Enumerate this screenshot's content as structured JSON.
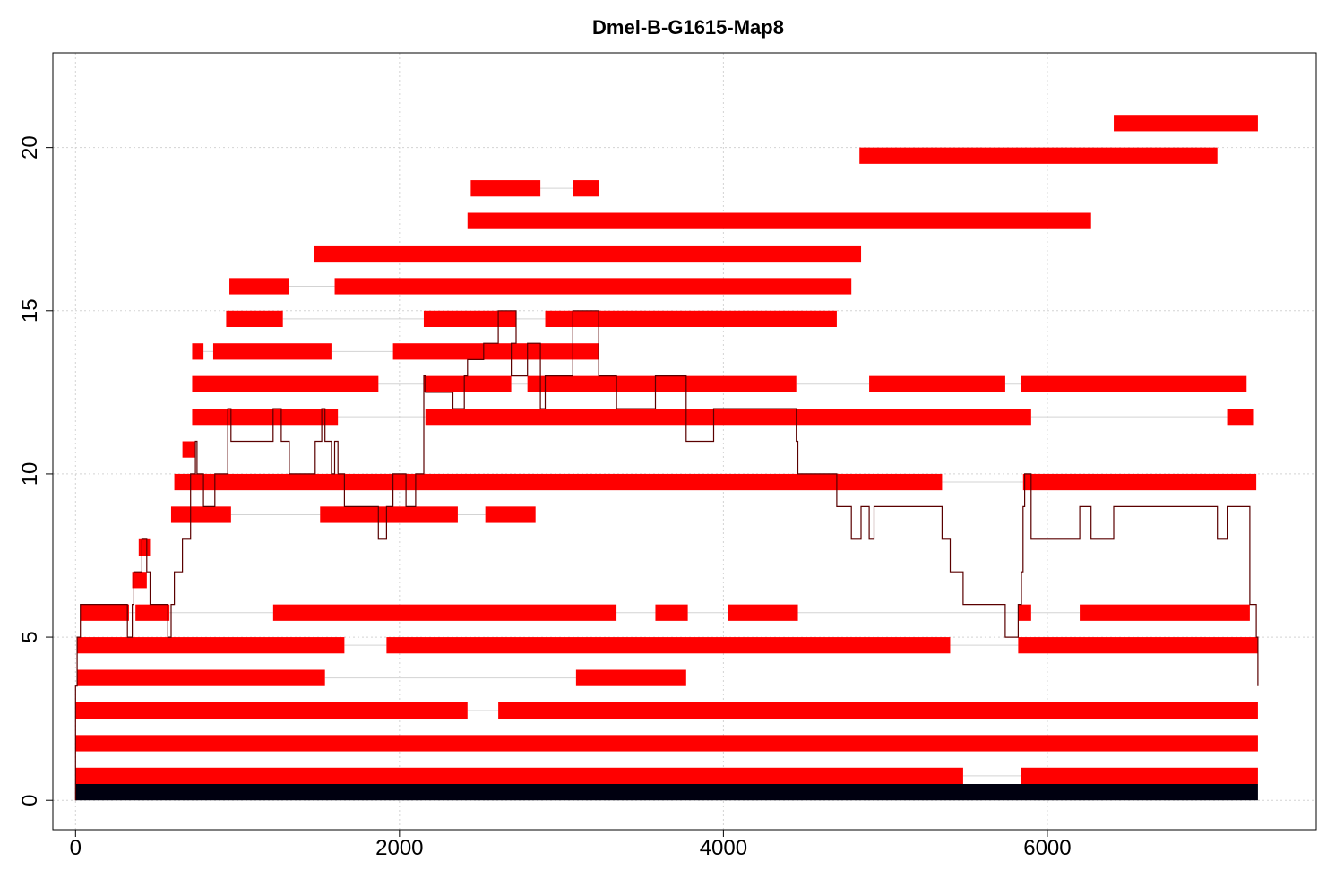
{
  "chart_data": {
    "type": "bar",
    "title": "Dmel-B-G1615-Map8",
    "xlabel": "",
    "ylabel": "",
    "xlim": [
      -140,
      7660
    ],
    "ylim": [
      -0.9,
      22.9
    ],
    "x_ticks": [
      0,
      2000,
      4000,
      6000
    ],
    "y_ticks": [
      0,
      5,
      10,
      15,
      20
    ],
    "grid": true,
    "colors": {
      "segment": "#ff0000",
      "reference": "#000010",
      "gap": "#d3d3d3",
      "coverage": "#5a0000",
      "grid": "#d3d3d3"
    },
    "reference": {
      "name": "",
      "y": 0,
      "start": 0,
      "end": 7300
    },
    "tracks": [
      {
        "y": 1,
        "segments": [
          [
            0,
            5480
          ],
          [
            5840,
            7300
          ]
        ]
      },
      {
        "y": 2,
        "segments": [
          [
            0,
            7300
          ]
        ]
      },
      {
        "y": 3,
        "segments": [
          [
            0,
            2420
          ],
          [
            2610,
            7300
          ]
        ]
      },
      {
        "y": 4,
        "segments": [
          [
            10,
            1540
          ],
          [
            3090,
            3770
          ]
        ]
      },
      {
        "y": 5,
        "segments": [
          [
            10,
            1660
          ],
          [
            1920,
            5400
          ],
          [
            5820,
            7300
          ]
        ]
      },
      {
        "y": 6,
        "segments": [
          [
            30,
            330
          ],
          [
            370,
            580
          ],
          [
            1220,
            3340
          ],
          [
            3580,
            3780
          ],
          [
            4030,
            4460
          ],
          [
            5820,
            5900
          ],
          [
            6200,
            7250
          ]
        ]
      },
      {
        "y": 7,
        "segments": [
          [
            350,
            440
          ]
        ]
      },
      {
        "y": 8,
        "segments": [
          [
            390,
            460
          ]
        ]
      },
      {
        "y": 9,
        "segments": [
          [
            590,
            960
          ],
          [
            1510,
            2360
          ],
          [
            2530,
            2840
          ]
        ]
      },
      {
        "y": 10,
        "segments": [
          [
            610,
            5350
          ],
          [
            5850,
            7290
          ]
        ]
      },
      {
        "y": 11,
        "segments": [
          [
            660,
            740
          ]
        ]
      },
      {
        "y": 12,
        "segments": [
          [
            720,
            1620
          ],
          [
            2160,
            5900
          ],
          [
            7110,
            7270
          ]
        ]
      },
      {
        "y": 13,
        "segments": [
          [
            720,
            1870
          ],
          [
            2150,
            2690
          ],
          [
            2790,
            4450
          ],
          [
            4900,
            5740
          ],
          [
            5840,
            7230
          ]
        ]
      },
      {
        "y": 14,
        "segments": [
          [
            720,
            790
          ],
          [
            850,
            1580
          ],
          [
            1960,
            3230
          ]
        ]
      },
      {
        "y": 15,
        "segments": [
          [
            930,
            1280
          ],
          [
            2150,
            2720
          ],
          [
            2900,
            4700
          ]
        ]
      },
      {
        "y": 16,
        "segments": [
          [
            950,
            1320
          ],
          [
            1600,
            4790
          ]
        ]
      },
      {
        "y": 17,
        "segments": [
          [
            1470,
            4850
          ]
        ]
      },
      {
        "y": 18,
        "segments": [
          [
            2420,
            6270
          ]
        ]
      },
      {
        "y": 19,
        "segments": [
          [
            2440,
            2870
          ],
          [
            3070,
            3230
          ]
        ]
      },
      {
        "y": 20,
        "segments": [
          [
            4840,
            7050
          ]
        ]
      },
      {
        "y": 21,
        "segments": [
          [
            6410,
            7300
          ]
        ]
      }
    ],
    "coverage": [
      [
        0,
        0
      ],
      [
        0,
        3.5
      ],
      [
        10,
        3.5
      ],
      [
        10,
        5
      ],
      [
        30,
        5
      ],
      [
        30,
        6
      ],
      [
        320,
        6
      ],
      [
        320,
        5
      ],
      [
        350,
        5
      ],
      [
        350,
        6
      ],
      [
        360,
        6
      ],
      [
        360,
        7
      ],
      [
        410,
        7
      ],
      [
        410,
        8
      ],
      [
        440,
        8
      ],
      [
        440,
        7
      ],
      [
        460,
        7
      ],
      [
        460,
        6
      ],
      [
        570,
        6
      ],
      [
        570,
        5
      ],
      [
        590,
        5
      ],
      [
        590,
        6
      ],
      [
        610,
        6
      ],
      [
        610,
        7
      ],
      [
        660,
        7
      ],
      [
        660,
        8
      ],
      [
        710,
        8
      ],
      [
        710,
        10
      ],
      [
        740,
        10
      ],
      [
        740,
        11
      ],
      [
        750,
        11
      ],
      [
        750,
        10
      ],
      [
        790,
        10
      ],
      [
        790,
        9
      ],
      [
        860,
        9
      ],
      [
        860,
        10
      ],
      [
        940,
        10
      ],
      [
        940,
        12
      ],
      [
        960,
        12
      ],
      [
        960,
        11
      ],
      [
        1220,
        11
      ],
      [
        1220,
        12
      ],
      [
        1270,
        12
      ],
      [
        1270,
        11
      ],
      [
        1320,
        11
      ],
      [
        1320,
        10
      ],
      [
        1480,
        10
      ],
      [
        1480,
        11
      ],
      [
        1520,
        11
      ],
      [
        1520,
        12
      ],
      [
        1540,
        12
      ],
      [
        1540,
        11
      ],
      [
        1580,
        11
      ],
      [
        1580,
        10
      ],
      [
        1600,
        10
      ],
      [
        1600,
        11
      ],
      [
        1620,
        11
      ],
      [
        1620,
        10
      ],
      [
        1660,
        10
      ],
      [
        1660,
        9
      ],
      [
        1870,
        9
      ],
      [
        1870,
        8
      ],
      [
        1920,
        8
      ],
      [
        1920,
        9
      ],
      [
        1960,
        9
      ],
      [
        1960,
        10
      ],
      [
        2040,
        10
      ],
      [
        2040,
        9
      ],
      [
        2100,
        9
      ],
      [
        2100,
        10
      ],
      [
        2150,
        10
      ],
      [
        2150,
        13
      ],
      [
        2160,
        13
      ],
      [
        2160,
        12.5
      ],
      [
        2330,
        12.5
      ],
      [
        2330,
        12
      ],
      [
        2400,
        12
      ],
      [
        2400,
        13
      ],
      [
        2420,
        13
      ],
      [
        2420,
        13.5
      ],
      [
        2520,
        13.5
      ],
      [
        2520,
        14
      ],
      [
        2610,
        14
      ],
      [
        2610,
        15
      ],
      [
        2720,
        15
      ],
      [
        2720,
        14
      ],
      [
        2690,
        14
      ],
      [
        2690,
        13
      ],
      [
        2790,
        13
      ],
      [
        2790,
        14
      ],
      [
        2870,
        14
      ],
      [
        2870,
        12
      ],
      [
        2900,
        12
      ],
      [
        2900,
        13
      ],
      [
        3070,
        13
      ],
      [
        3070,
        15
      ],
      [
        3230,
        15
      ],
      [
        3230,
        13
      ],
      [
        3340,
        13
      ],
      [
        3340,
        12
      ],
      [
        3580,
        12
      ],
      [
        3580,
        13
      ],
      [
        3770,
        13
      ],
      [
        3770,
        11
      ],
      [
        3940,
        11
      ],
      [
        3940,
        12
      ],
      [
        4450,
        12
      ],
      [
        4450,
        11
      ],
      [
        4460,
        11
      ],
      [
        4460,
        10
      ],
      [
        4700,
        10
      ],
      [
        4700,
        9
      ],
      [
        4790,
        9
      ],
      [
        4790,
        8
      ],
      [
        4850,
        8
      ],
      [
        4850,
        9
      ],
      [
        4900,
        9
      ],
      [
        4900,
        8
      ],
      [
        4930,
        8
      ],
      [
        4930,
        9
      ],
      [
        5350,
        9
      ],
      [
        5350,
        8
      ],
      [
        5400,
        8
      ],
      [
        5400,
        7
      ],
      [
        5480,
        7
      ],
      [
        5480,
        6
      ],
      [
        5740,
        6
      ],
      [
        5740,
        5
      ],
      [
        5820,
        5
      ],
      [
        5820,
        6
      ],
      [
        5840,
        6
      ],
      [
        5840,
        7
      ],
      [
        5850,
        7
      ],
      [
        5850,
        9
      ],
      [
        5860,
        9
      ],
      [
        5860,
        10
      ],
      [
        5900,
        10
      ],
      [
        5900,
        8
      ],
      [
        6200,
        8
      ],
      [
        6200,
        9
      ],
      [
        6270,
        9
      ],
      [
        6270,
        8
      ],
      [
        6410,
        8
      ],
      [
        6410,
        9
      ],
      [
        7050,
        9
      ],
      [
        7050,
        8
      ],
      [
        7110,
        8
      ],
      [
        7110,
        9
      ],
      [
        7250,
        9
      ],
      [
        7250,
        6
      ],
      [
        7290,
        6
      ],
      [
        7290,
        5
      ],
      [
        7300,
        5
      ],
      [
        7300,
        3.5
      ]
    ]
  }
}
